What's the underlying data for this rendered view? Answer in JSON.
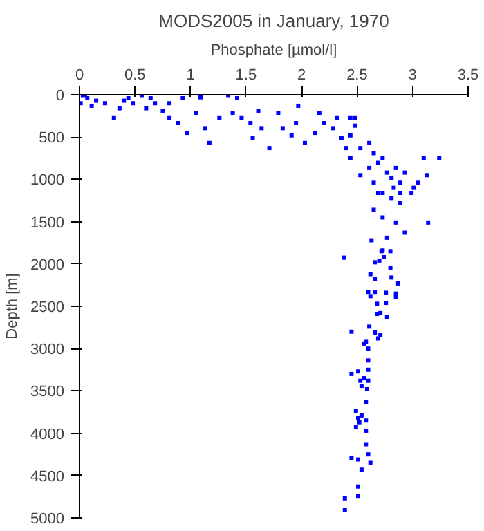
{
  "chart_data": {
    "type": "scatter",
    "title": "MODS2005 in January, 1970",
    "xlabel": "Phosphate [µmol/l]",
    "ylabel": "Depth [m]",
    "xlim": [
      0,
      3.5
    ],
    "xticks": [
      0,
      0.5,
      1,
      1.5,
      2,
      2.5,
      3,
      3.5
    ],
    "ylim": [
      5000,
      0
    ],
    "yticks": [
      0,
      500,
      1000,
      1500,
      2000,
      2500,
      3000,
      3500,
      4000,
      4500,
      5000
    ],
    "grid": false,
    "marker": "square",
    "series": [
      {
        "color": "#0000ff",
        "x": [
          0.03,
          0.07,
          0.15,
          0.23,
          0.36,
          0.31,
          0.44,
          0.56,
          0.64,
          0.68,
          0.75,
          0.81,
          0.93,
          0.89,
          0.97,
          1.05,
          1.09,
          1.13,
          1.26,
          1.34,
          1.38,
          1.42,
          1.46,
          1.54,
          1.61,
          1.64,
          1.56,
          1.79,
          1.83,
          1.95,
          1.97,
          2.03,
          2.16,
          2.2,
          2.28,
          2.36,
          2.44,
          2.48,
          2.4,
          2.44,
          2.53,
          2.61,
          2.65,
          2.69,
          2.73,
          2.77,
          2.81,
          2.85,
          2.89,
          2.93,
          3.01,
          3.05,
          3.1,
          3.24,
          3.13,
          2.73,
          2.81,
          2.89,
          2.99,
          2.65,
          2.73,
          2.85,
          3.14,
          2.77,
          2.63,
          2.93,
          2.53,
          2.61,
          2.65,
          2.69,
          2.83,
          2.89,
          2.44,
          2.48,
          2.32,
          2.12,
          1.91,
          1.71,
          1.17,
          0.81,
          0.4,
          0.11,
          0.01,
          0.05,
          0.48,
          0.6,
          2.38,
          2.72,
          2.73,
          2.8,
          2.74,
          2.66,
          2.7,
          2.8,
          2.62,
          2.66,
          2.81,
          2.87,
          2.6,
          2.66,
          2.76,
          2.85,
          2.62,
          2.85,
          2.68,
          2.76,
          2.68,
          2.71,
          2.77,
          2.61,
          2.45,
          2.66,
          2.71,
          2.69,
          2.56,
          2.58,
          2.6,
          2.6,
          2.6,
          2.51,
          2.45,
          2.56,
          2.53,
          2.6,
          2.54,
          2.59,
          2.58,
          2.49,
          2.54,
          2.51,
          2.58,
          2.52,
          2.49,
          2.58,
          2.58,
          2.6,
          2.45,
          2.51,
          2.62,
          2.54,
          2.51,
          2.51,
          2.39,
          2.39
        ],
        "values": [
          12,
          41,
          70,
          100,
          160,
          276,
          41,
          12,
          41,
          100,
          190,
          276,
          41,
          335,
          450,
          220,
          30,
          395,
          276,
          12,
          220,
          41,
          276,
          335,
          190,
          395,
          510,
          220,
          395,
          335,
          130,
          570,
          220,
          335,
          395,
          510,
          276,
          365,
          630,
          750,
          630,
          570,
          690,
          805,
          750,
          920,
          980,
          865,
          1040,
          920,
          1100,
          1040,
          750,
          750,
          950,
          1160,
          1220,
          1280,
          1160,
          1360,
          1450,
          1510,
          1510,
          1690,
          1720,
          1630,
          950,
          865,
          1040,
          1160,
          1100,
          1160,
          480,
          276,
          276,
          450,
          480,
          630,
          570,
          100,
          70,
          130,
          100,
          0,
          100,
          160,
          1925,
          1849,
          1840,
          1849,
          1920,
          1980,
          1960,
          2050,
          2120,
          2180,
          2160,
          2230,
          2330,
          2330,
          2340,
          2350,
          2380,
          2390,
          2470,
          2460,
          2590,
          2580,
          2630,
          2740,
          2800,
          2810,
          2840,
          2880,
          2940,
          2920,
          3000,
          3140,
          3250,
          3270,
          3300,
          3350,
          3380,
          3380,
          3440,
          3480,
          3630,
          3740,
          3790,
          3820,
          3850,
          3870,
          3930,
          3970,
          4130,
          4250,
          4290,
          4310,
          4350,
          4430,
          4630,
          4740,
          4770,
          4910
        ]
      }
    ]
  }
}
